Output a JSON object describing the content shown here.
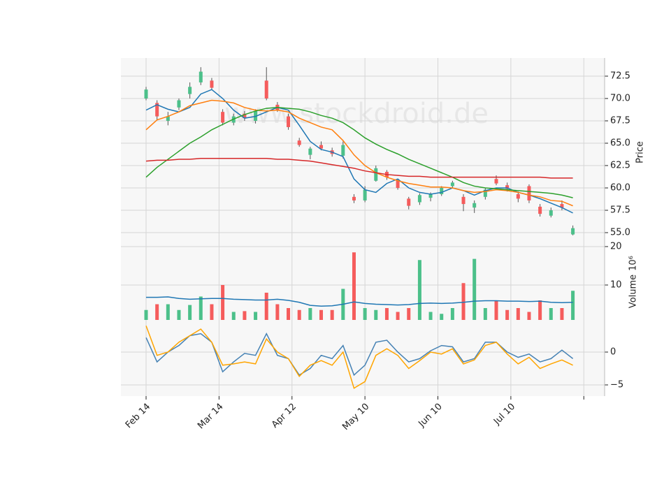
{
  "watermark": "www.stockdroid.de",
  "chart_data": [
    {
      "type": "candlestick",
      "ylabel": "Price",
      "up_color": "#4cc08a",
      "down_color": "#f55c5c",
      "x": [
        0,
        3,
        6,
        9,
        12,
        15,
        18,
        21,
        24,
        27,
        30,
        33,
        36,
        39,
        42,
        45,
        48,
        51,
        54,
        57,
        60,
        63,
        66,
        69,
        72,
        75,
        78,
        81,
        84,
        87,
        90,
        93,
        96,
        99,
        102,
        105,
        108,
        111,
        114,
        117
      ],
      "open": [
        70,
        69.5,
        67.5,
        69,
        70.5,
        71.8,
        72,
        68.5,
        67.3,
        68.3,
        67.5,
        72,
        69.3,
        68,
        65.3,
        63.7,
        64.8,
        64.2,
        63.6,
        59,
        58.6,
        60.8,
        61.8,
        60.8,
        58.8,
        58.4,
        58.9,
        59.3,
        60.2,
        59,
        57.8,
        59,
        61,
        60.3,
        59.3,
        60.2,
        57.9,
        56.9,
        58.2,
        54.8
      ],
      "high": [
        71.3,
        69.8,
        68.5,
        70,
        71.8,
        73.5,
        72.3,
        68.8,
        68.3,
        68.6,
        68.8,
        73.5,
        69.6,
        68.3,
        65.6,
        64.6,
        65.2,
        64.5,
        65.2,
        59.3,
        60.2,
        62.5,
        62,
        61,
        59,
        59.4,
        59.5,
        60.2,
        60.8,
        59.3,
        58.6,
        60,
        61.4,
        60.6,
        59.6,
        60.4,
        58.2,
        57.8,
        58.6,
        55.8
      ],
      "low": [
        69.8,
        67.6,
        67,
        68.7,
        70,
        71.5,
        71,
        67,
        67,
        67.5,
        67.2,
        69.8,
        68.5,
        66.5,
        64.6,
        63.2,
        64.2,
        63.5,
        63.3,
        58.3,
        58.4,
        60.7,
        60.9,
        59.8,
        57.6,
        58.1,
        58.5,
        59.1,
        60,
        57.4,
        57.2,
        58.7,
        60.3,
        59.6,
        58.4,
        58.3,
        56.8,
        56.7,
        57.5,
        54.7
      ],
      "close": [
        71,
        68,
        68,
        69.8,
        71.3,
        73,
        71.2,
        67.3,
        68,
        67.8,
        68.6,
        70,
        68.7,
        66.8,
        64.8,
        64.4,
        64.4,
        63.8,
        64.8,
        58.6,
        59.8,
        62.2,
        61.2,
        60,
        58,
        59.2,
        59.3,
        60,
        60.6,
        58.2,
        58.3,
        59.8,
        60.5,
        59.9,
        58.8,
        58.6,
        57.1,
        57.5,
        57.8,
        55.5
      ],
      "overlays": [
        {
          "color": "#1f77b4",
          "values": [
            68.7,
            69.3,
            68.8,
            68.5,
            69,
            70.5,
            71,
            70,
            68.7,
            67.8,
            68,
            68.5,
            69,
            68.7,
            67,
            65.2,
            64.3,
            64,
            63.5,
            61,
            59.8,
            59.5,
            60.5,
            61,
            60,
            59.5,
            59.3,
            59.5,
            60,
            59.7,
            59.2,
            59.7,
            60,
            60,
            59.5,
            59.2,
            58.8,
            58.3,
            57.8,
            57.2
          ]
        },
        {
          "color": "#ff7f0e",
          "values": [
            66.5,
            67.6,
            68,
            68.5,
            69.2,
            69.5,
            69.8,
            69.7,
            69.5,
            69,
            68.7,
            68.6,
            68.7,
            68.5,
            67.8,
            67.3,
            66.8,
            66.5,
            65.3,
            63.7,
            62.5,
            61.7,
            61.2,
            60.8,
            60.5,
            60.3,
            60.1,
            60.1,
            60,
            59.7,
            59.5,
            59.6,
            59.8,
            59.7,
            59.5,
            59.2,
            59,
            58.6,
            58.5,
            58
          ]
        },
        {
          "color": "#2ca02c",
          "values": [
            61.2,
            62.3,
            63.2,
            64.1,
            65,
            65.7,
            66.5,
            67.1,
            67.7,
            68.2,
            68.6,
            68.9,
            69,
            68.9,
            68.8,
            68.5,
            68.1,
            67.8,
            67.3,
            66.5,
            65.6,
            64.9,
            64.3,
            63.8,
            63.2,
            62.7,
            62.2,
            61.7,
            61.2,
            60.6,
            60.2,
            60,
            59.9,
            59.8,
            59.7,
            59.6,
            59.5,
            59.4,
            59.2,
            58.9
          ]
        },
        {
          "color": "#d62728",
          "values": [
            63,
            63.1,
            63.1,
            63.2,
            63.2,
            63.3,
            63.3,
            63.3,
            63.3,
            63.3,
            63.3,
            63.3,
            63.2,
            63.2,
            63.1,
            63,
            62.8,
            62.6,
            62.4,
            62.2,
            61.9,
            61.7,
            61.5,
            61.4,
            61.3,
            61.3,
            61.2,
            61.2,
            61.2,
            61.2,
            61.2,
            61.2,
            61.2,
            61.2,
            61.2,
            61.2,
            61.2,
            61.1,
            61.1,
            61.1
          ]
        }
      ],
      "ylim": [
        53.44,
        74.53
      ],
      "yticks": [
        {
          "value": 55,
          "label": "55.0"
        },
        {
          "value": 57.5,
          "label": "57.5"
        },
        {
          "value": 60,
          "label": "60.0"
        },
        {
          "value": 62.5,
          "label": "62.5"
        },
        {
          "value": 65,
          "label": "65.0"
        },
        {
          "value": 67.5,
          "label": "67.5"
        },
        {
          "value": 70,
          "label": "70.0"
        },
        {
          "value": 72.5,
          "label": "72.5"
        }
      ]
    },
    {
      "type": "bar",
      "ylabel": "Volume",
      "offset_label": "10⁶",
      "values": [
        3.5,
        5,
        5,
        3.5,
        4.8,
        7,
        5,
        10,
        3,
        3.2,
        3,
        8,
        5,
        4,
        3.5,
        4,
        3.5,
        3.5,
        9,
        18.5,
        4,
        3.5,
        4,
        3,
        4,
        16.5,
        3,
        2.5,
        4,
        10.5,
        16.8,
        4,
        6,
        3.5,
        4,
        3,
        6,
        4,
        4,
        8.5
      ],
      "ma": {
        "color": "#1f77b4",
        "values": [
          6.8,
          6.8,
          6.9,
          6.5,
          6.3,
          6.4,
          6.5,
          6.5,
          6.3,
          6.2,
          6.1,
          6.1,
          6.3,
          6,
          5.5,
          4.7,
          4.5,
          4.6,
          5,
          5.6,
          5.2,
          5,
          4.9,
          4.8,
          4.9,
          5.2,
          5.3,
          5.2,
          5.3,
          5.5,
          5.8,
          5.9,
          5.9,
          5.8,
          5.8,
          5.7,
          5.8,
          5.5,
          5.4,
          5.5
        ]
      },
      "ylim": [
        0.91,
        20
      ],
      "yticks": [
        10,
        20
      ]
    },
    {
      "type": "line",
      "series": [
        {
          "color": "#4682b4",
          "values": [
            2.2,
            -1.5,
            0,
            1,
            2.5,
            2.8,
            1.5,
            -3,
            -1.5,
            -0.2,
            -0.5,
            2.8,
            -0.5,
            -1,
            -3.5,
            -2.5,
            -0.5,
            -1,
            1,
            -3.5,
            -2,
            1.5,
            1.8,
            0,
            -1.5,
            -1,
            0.2,
            1,
            0.8,
            -1.5,
            -1,
            1.5,
            1.5,
            0,
            -0.8,
            -0.3,
            -1.5,
            -1,
            0.3,
            -1
          ]
        },
        {
          "color": "#ffa500",
          "values": [
            4,
            -0.5,
            0,
            1.5,
            2.5,
            3.5,
            1.5,
            -2,
            -1.8,
            -1.5,
            -1.8,
            2,
            0,
            -1,
            -3.7,
            -2,
            -1.3,
            -2,
            0,
            -5.5,
            -4.5,
            -0.5,
            0.5,
            -0.5,
            -2.5,
            -1.3,
            0,
            -0.3,
            0.5,
            -1.8,
            -1.2,
            1,
            1.5,
            -0.3,
            -1.8,
            -0.8,
            -2.5,
            -1.8,
            -1.2,
            -2
          ]
        }
      ],
      "ylim": [
        -6.7,
        4.89
      ],
      "yticks": [
        {
          "value": -5,
          "label": "−5"
        },
        0
      ],
      "xlim": [
        -6.9,
        125.7
      ],
      "xticks": [
        {
          "value": 0,
          "label": "Feb 14"
        },
        {
          "value": 20,
          "label": "Mar 14"
        },
        {
          "value": 40,
          "label": "Apr 12"
        },
        {
          "value": 60,
          "label": "May 10"
        },
        {
          "value": 80,
          "label": "Jun 10"
        },
        {
          "value": 100,
          "label": "Jul 10"
        },
        {
          "value": 120,
          "label": null
        }
      ]
    }
  ]
}
